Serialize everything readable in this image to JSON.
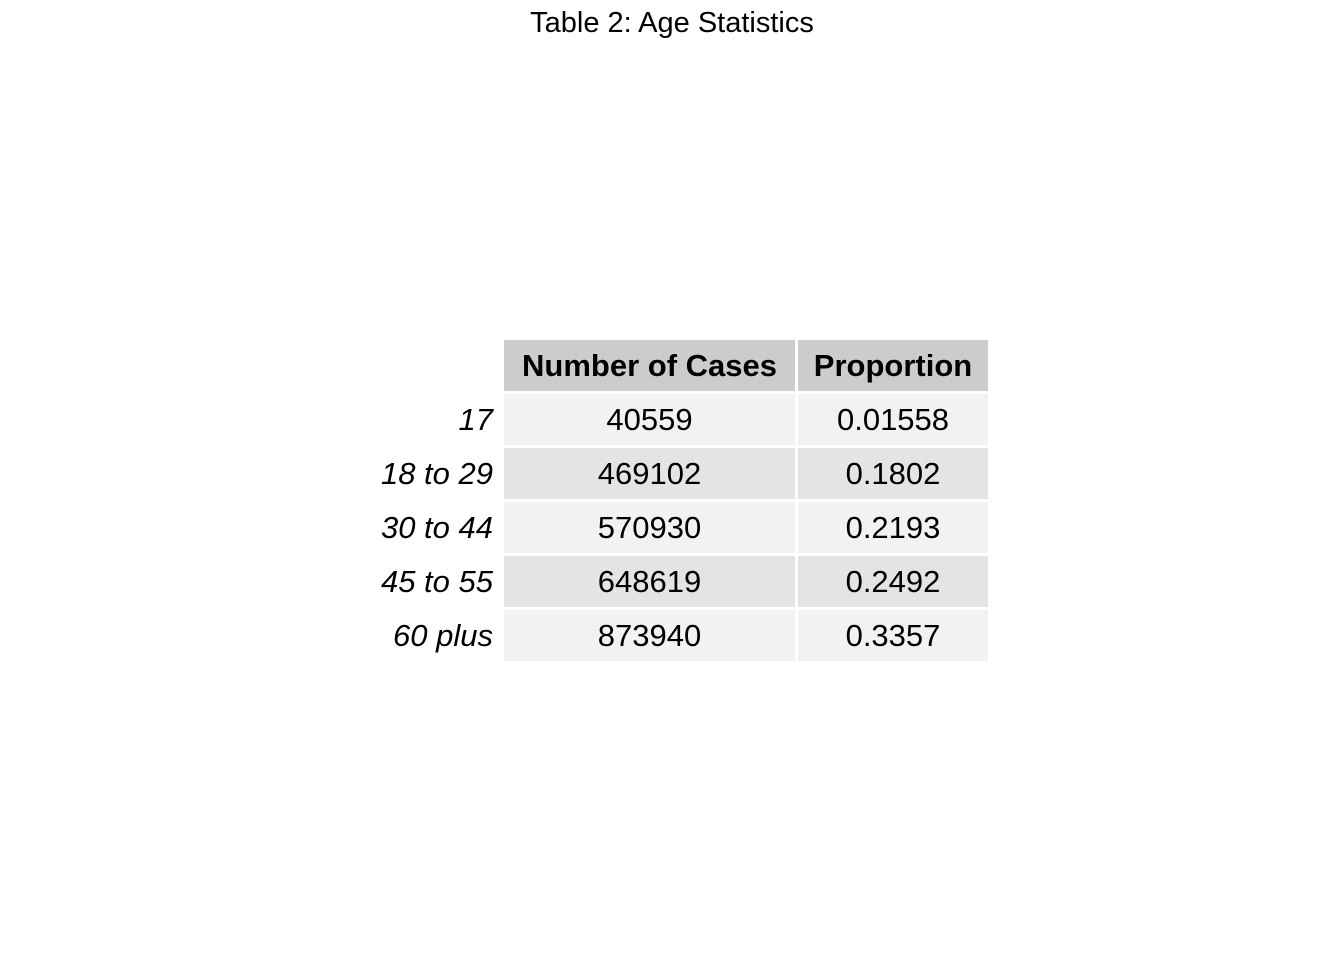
{
  "title": "Table 2: Age Statistics",
  "chart_data": {
    "type": "table",
    "title": "Table 2: Age Statistics",
    "columns": [
      "Number of Cases",
      "Proportion"
    ],
    "rows": [
      {
        "label": "17",
        "values": [
          "40559",
          "0.01558"
        ]
      },
      {
        "label": "18 to 29",
        "values": [
          "469102",
          "0.1802"
        ]
      },
      {
        "label": "30 to 44",
        "values": [
          "570930",
          "0.2193"
        ]
      },
      {
        "label": "45 to 55",
        "values": [
          "648619",
          "0.2492"
        ]
      },
      {
        "label": "60 plus",
        "values": [
          "873940",
          "0.3357"
        ]
      }
    ]
  }
}
